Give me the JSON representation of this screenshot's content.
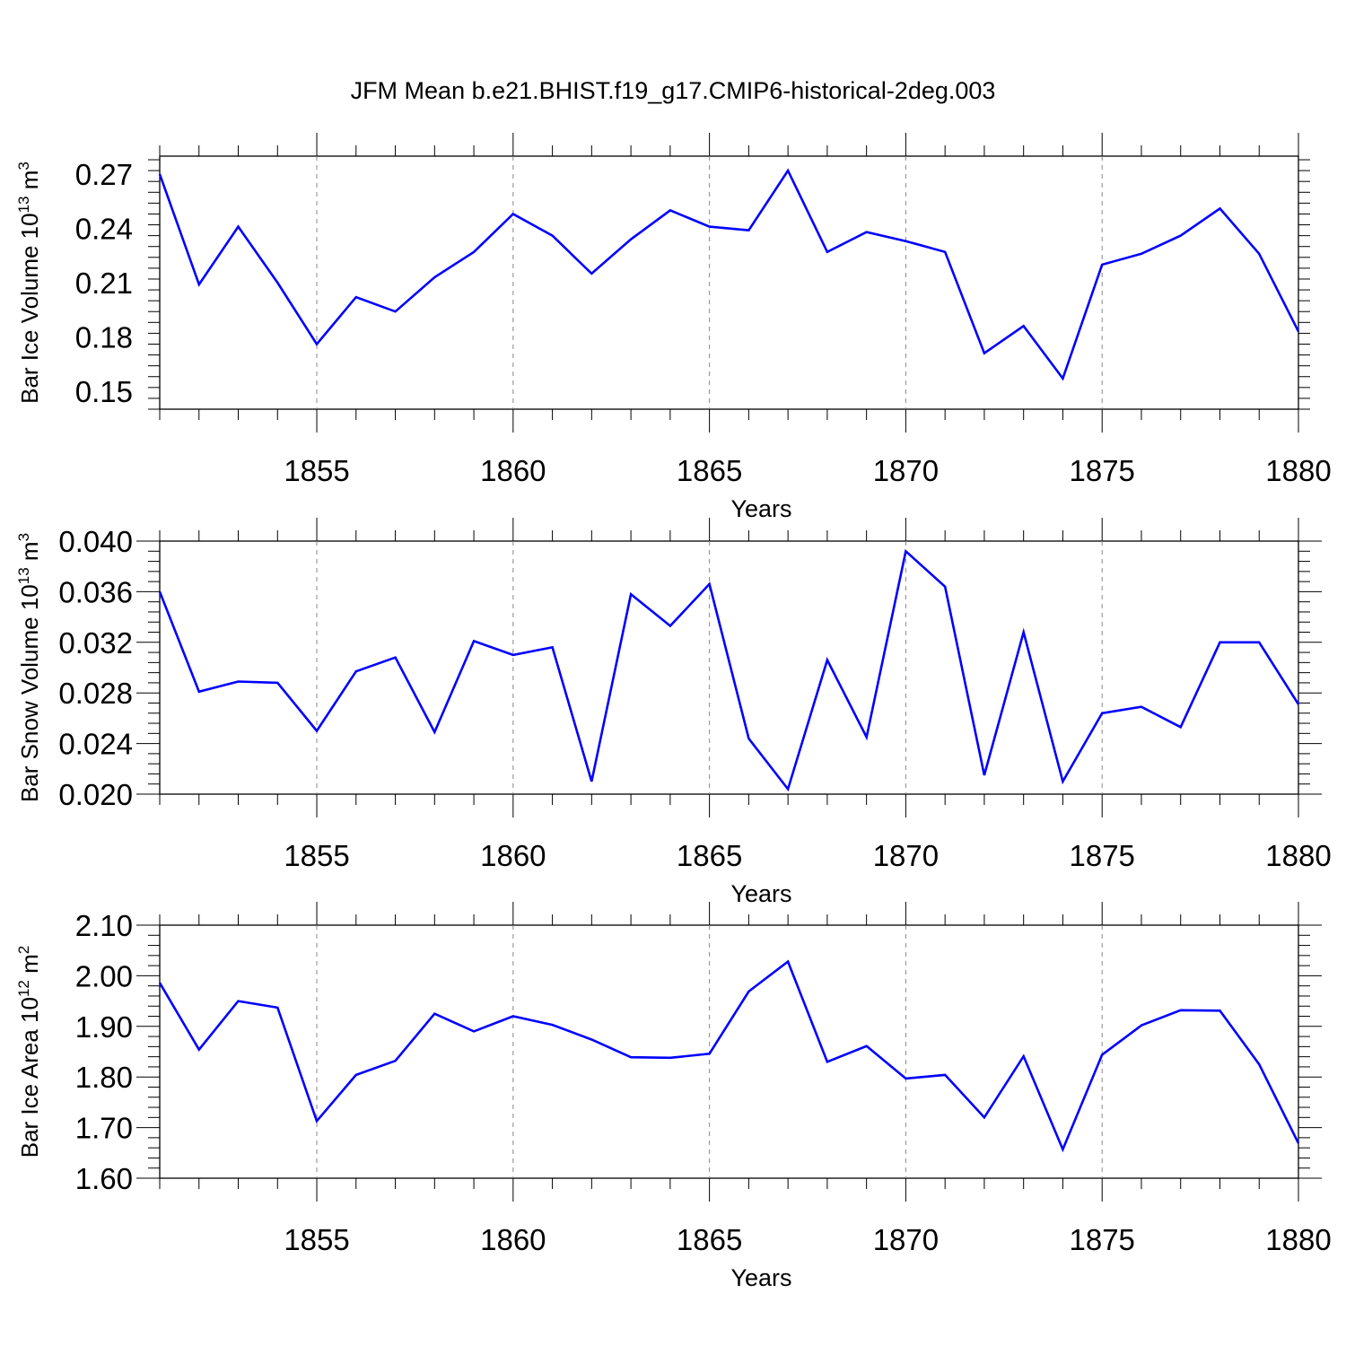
{
  "title": "JFM Mean b.e21.BHIST.f19_g17.CMIP6-historical-2deg.003",
  "colors": {
    "line": "#0000ff",
    "axis": "#000000",
    "grid": "#888888"
  },
  "chart_data": [
    {
      "type": "line",
      "ylabel": {
        "main": "Bar Ice Volume 10",
        "exp": "13",
        "unit": " m",
        "unit_exp": "3"
      },
      "xlabel": "Years",
      "xlim": [
        1851,
        1880
      ],
      "ylim": [
        0.14,
        0.28
      ],
      "yticks": [
        0.15,
        0.18,
        0.21,
        0.24,
        0.27
      ],
      "ytick_labels": [
        "0.15",
        "0.18",
        "0.21",
        "0.24",
        "0.27"
      ],
      "xticks": [
        1855,
        1860,
        1865,
        1870,
        1875,
        1880
      ],
      "xtick_labels": [
        "1855",
        "1860",
        "1865",
        "1870",
        "1875",
        "1880"
      ],
      "grid": "vertical dashed at major x ticks",
      "x": [
        1851,
        1852,
        1853,
        1854,
        1855,
        1856,
        1857,
        1858,
        1859,
        1860,
        1861,
        1862,
        1863,
        1864,
        1865,
        1866,
        1867,
        1868,
        1869,
        1870,
        1871,
        1872,
        1873,
        1874,
        1875,
        1876,
        1877,
        1878,
        1879,
        1880
      ],
      "series": [
        {
          "values": [
            0.27,
            0.209,
            0.241,
            0.21,
            0.176,
            0.202,
            0.194,
            0.213,
            0.227,
            0.248,
            0.236,
            0.215,
            0.234,
            0.25,
            0.241,
            0.239,
            0.272,
            0.227,
            0.238,
            0.233,
            0.227,
            0.171,
            0.186,
            0.157,
            0.22,
            0.226,
            0.236,
            0.251,
            0.226,
            0.183
          ]
        }
      ]
    },
    {
      "type": "line",
      "ylabel": {
        "main": "Bar Snow Volume 10",
        "exp": "13",
        "unit": " m",
        "unit_exp": "3"
      },
      "xlabel": "Years",
      "xlim": [
        1851,
        1880
      ],
      "ylim": [
        0.02,
        0.04
      ],
      "yticks": [
        0.02,
        0.024,
        0.028,
        0.032,
        0.036,
        0.04
      ],
      "ytick_labels": [
        "0.020",
        "0.024",
        "0.028",
        "0.032",
        "0.036",
        "0.040"
      ],
      "xticks": [
        1855,
        1860,
        1865,
        1870,
        1875,
        1880
      ],
      "xtick_labels": [
        "1855",
        "1860",
        "1865",
        "1870",
        "1875",
        "1880"
      ],
      "grid": "vertical dashed at major x ticks",
      "x": [
        1851,
        1852,
        1853,
        1854,
        1855,
        1856,
        1857,
        1858,
        1859,
        1860,
        1861,
        1862,
        1863,
        1864,
        1865,
        1866,
        1867,
        1868,
        1869,
        1870,
        1871,
        1872,
        1873,
        1874,
        1875,
        1876,
        1877,
        1878,
        1879,
        1880
      ],
      "series": [
        {
          "values": [
            0.036,
            0.0281,
            0.0289,
            0.0288,
            0.025,
            0.0297,
            0.0308,
            0.0249,
            0.0321,
            0.031,
            0.0316,
            0.021,
            0.0358,
            0.0333,
            0.0366,
            0.0244,
            0.0204,
            0.0306,
            0.0245,
            0.0392,
            0.0364,
            0.0215,
            0.0328,
            0.021,
            0.0264,
            0.0269,
            0.0253,
            0.032,
            0.032,
            0.0271
          ]
        }
      ]
    },
    {
      "type": "line",
      "ylabel": {
        "main": "Bar Ice Area 10",
        "exp": "12",
        "unit": " m",
        "unit_exp": "2"
      },
      "xlabel": "Years",
      "xlim": [
        1851,
        1880
      ],
      "ylim": [
        1.6,
        2.1
      ],
      "yticks": [
        1.6,
        1.7,
        1.8,
        1.9,
        2.0,
        2.1
      ],
      "ytick_labels": [
        "1.60",
        "1.70",
        "1.80",
        "1.90",
        "2.00",
        "2.10"
      ],
      "xticks": [
        1855,
        1860,
        1865,
        1870,
        1875,
        1880
      ],
      "xtick_labels": [
        "1855",
        "1860",
        "1865",
        "1870",
        "1875",
        "1880"
      ],
      "grid": "vertical dashed at major x ticks",
      "x": [
        1851,
        1852,
        1853,
        1854,
        1855,
        1856,
        1857,
        1858,
        1859,
        1860,
        1861,
        1862,
        1863,
        1864,
        1865,
        1866,
        1867,
        1868,
        1869,
        1870,
        1871,
        1872,
        1873,
        1874,
        1875,
        1876,
        1877,
        1878,
        1879,
        1880
      ],
      "series": [
        {
          "values": [
            1.986,
            1.854,
            1.95,
            1.937,
            1.713,
            1.804,
            1.832,
            1.925,
            1.89,
            1.92,
            1.903,
            1.874,
            1.839,
            1.838,
            1.846,
            1.969,
            2.028,
            1.83,
            1.861,
            1.797,
            1.804,
            1.72,
            1.841,
            1.657,
            1.844,
            1.902,
            1.932,
            1.931,
            1.825,
            1.669
          ]
        }
      ]
    }
  ]
}
